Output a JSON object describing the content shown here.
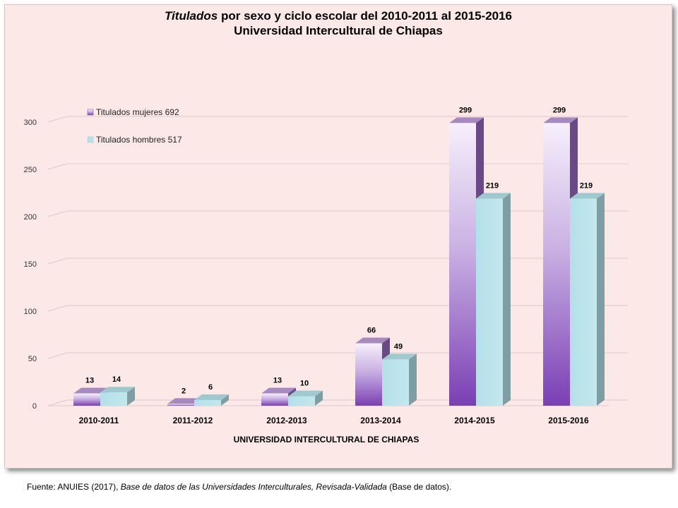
{
  "chart_data": {
    "type": "bar",
    "title_italic": "Titulados",
    "title_rest": " por sexo y ciclo escolar del  2010-2011 al  2015-2016",
    "subtitle": "Universidad Intercultural de Chiapas",
    "xlabel": "UNIVERSIDAD INTERCULTURAL DE CHIAPAS",
    "ylabel": "",
    "ylim": [
      0,
      300
    ],
    "yticks": [
      0,
      50,
      100,
      150,
      200,
      250,
      300
    ],
    "grid": true,
    "three_d": true,
    "legend_position": "top-left",
    "categories": [
      "2010-2011",
      "2011-2012",
      "2012-2013",
      "2013-2014",
      "2014-2015",
      "2015-2016"
    ],
    "series": [
      {
        "name": "Titulados mujeres  692",
        "values": [
          13,
          2,
          13,
          66,
          299,
          299
        ],
        "color": "#8a4fbf"
      },
      {
        "name": "Titulados hombres  517",
        "values": [
          14,
          6,
          10,
          49,
          219,
          219
        ],
        "color": "#b7e2ea"
      }
    ]
  },
  "source": {
    "prefix": "Fuente: ANUIES (2017), ",
    "italic": "Base de datos de las Universidades  Interculturales, Revisada-Validada",
    "suffix": "  (Base de datos)."
  }
}
